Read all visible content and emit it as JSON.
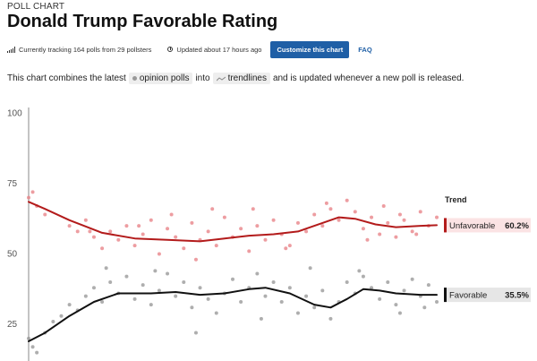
{
  "header": {
    "eyebrow": "POLL CHART",
    "title": "Donald Trump Favorable Rating"
  },
  "meta": {
    "tracking": "Currently tracking 164 polls from 29 pollsters",
    "updated": "Updated about 17 hours ago",
    "customize_label": "Customize this chart",
    "faq_label": "FAQ"
  },
  "description": {
    "before": "This chart combines the latest",
    "chip1": "opinion polls",
    "middle": "into",
    "chip2": "trendlines",
    "after": "and is updated whenever a new poll is released."
  },
  "colors": {
    "unfavorable": "#b31b1b",
    "unfavorable_dots": "#e8848a",
    "favorable": "#111111",
    "favorable_dots": "#9a9a9a",
    "button": "#1f5fa6"
  },
  "chart_data": {
    "type": "line",
    "ylim": [
      12,
      102
    ],
    "xlim": [
      0,
      100
    ],
    "yticks": [
      100,
      75,
      50,
      25
    ],
    "legend_title": "Trend",
    "grid": false,
    "series": [
      {
        "name": "Unfavorable",
        "end_value": "60.2%",
        "trend": [
          [
            0,
            68.5
          ],
          [
            4,
            66
          ],
          [
            10,
            62
          ],
          [
            18,
            57.5
          ],
          [
            26,
            55.5
          ],
          [
            34,
            55
          ],
          [
            42,
            54.5
          ],
          [
            48,
            55.5
          ],
          [
            54,
            56.5
          ],
          [
            60,
            57
          ],
          [
            66,
            58
          ],
          [
            72,
            61
          ],
          [
            76,
            63
          ],
          [
            80,
            62.5
          ],
          [
            85,
            60.5
          ],
          [
            90,
            59.5
          ],
          [
            96,
            60
          ],
          [
            100,
            60.2
          ]
        ],
        "points": [
          [
            0,
            70
          ],
          [
            1,
            72
          ],
          [
            2,
            67
          ],
          [
            4,
            64
          ],
          [
            10,
            60
          ],
          [
            12,
            58
          ],
          [
            14,
            62
          ],
          [
            16,
            56
          ],
          [
            18,
            52
          ],
          [
            20,
            58
          ],
          [
            22,
            55
          ],
          [
            24,
            60
          ],
          [
            26,
            53
          ],
          [
            28,
            57
          ],
          [
            30,
            62
          ],
          [
            32,
            50
          ],
          [
            34,
            59
          ],
          [
            36,
            56
          ],
          [
            38,
            52
          ],
          [
            40,
            61
          ],
          [
            42,
            55
          ],
          [
            44,
            58
          ],
          [
            46,
            53
          ],
          [
            48,
            63
          ],
          [
            50,
            56
          ],
          [
            52,
            59
          ],
          [
            54,
            51
          ],
          [
            56,
            60
          ],
          [
            58,
            55
          ],
          [
            60,
            62
          ],
          [
            62,
            57
          ],
          [
            64,
            53
          ],
          [
            66,
            61
          ],
          [
            68,
            58
          ],
          [
            70,
            64
          ],
          [
            72,
            60
          ],
          [
            74,
            66
          ],
          [
            76,
            62
          ],
          [
            78,
            69
          ],
          [
            80,
            65
          ],
          [
            82,
            59
          ],
          [
            84,
            63
          ],
          [
            86,
            57
          ],
          [
            88,
            61
          ],
          [
            90,
            56
          ],
          [
            92,
            62
          ],
          [
            94,
            58
          ],
          [
            96,
            65
          ],
          [
            98,
            60
          ],
          [
            100,
            63
          ],
          [
            35,
            64
          ],
          [
            45,
            66
          ],
          [
            55,
            66
          ],
          [
            73,
            68
          ],
          [
            87,
            67
          ],
          [
            91,
            64
          ],
          [
            15,
            58
          ],
          [
            27,
            60
          ],
          [
            41,
            48
          ],
          [
            63,
            52
          ],
          [
            83,
            55
          ],
          [
            95,
            57
          ]
        ]
      },
      {
        "name": "Favorable",
        "end_value": "35.5%",
        "trend": [
          [
            0,
            19
          ],
          [
            4,
            22
          ],
          [
            10,
            28
          ],
          [
            16,
            33
          ],
          [
            22,
            36
          ],
          [
            30,
            36
          ],
          [
            36,
            36.5
          ],
          [
            42,
            35.5
          ],
          [
            48,
            36
          ],
          [
            54,
            37.5
          ],
          [
            58,
            38
          ],
          [
            64,
            36
          ],
          [
            70,
            32
          ],
          [
            74,
            31
          ],
          [
            78,
            34
          ],
          [
            82,
            37.5
          ],
          [
            86,
            37
          ],
          [
            90,
            36
          ],
          [
            96,
            35.5
          ],
          [
            100,
            35.5
          ]
        ],
        "points": [
          [
            0,
            20
          ],
          [
            1,
            17
          ],
          [
            2,
            15
          ],
          [
            4,
            22
          ],
          [
            8,
            28
          ],
          [
            10,
            32
          ],
          [
            12,
            30
          ],
          [
            14,
            35
          ],
          [
            16,
            38
          ],
          [
            18,
            33
          ],
          [
            20,
            40
          ],
          [
            22,
            36
          ],
          [
            24,
            42
          ],
          [
            26,
            34
          ],
          [
            28,
            39
          ],
          [
            30,
            32
          ],
          [
            32,
            37
          ],
          [
            34,
            43
          ],
          [
            36,
            35
          ],
          [
            38,
            40
          ],
          [
            40,
            31
          ],
          [
            42,
            38
          ],
          [
            44,
            34
          ],
          [
            46,
            29
          ],
          [
            48,
            36
          ],
          [
            50,
            41
          ],
          [
            52,
            33
          ],
          [
            54,
            38
          ],
          [
            56,
            43
          ],
          [
            58,
            35
          ],
          [
            60,
            40
          ],
          [
            62,
            33
          ],
          [
            64,
            38
          ],
          [
            66,
            29
          ],
          [
            68,
            35
          ],
          [
            70,
            31
          ],
          [
            72,
            37
          ],
          [
            74,
            27
          ],
          [
            76,
            33
          ],
          [
            78,
            40
          ],
          [
            80,
            36
          ],
          [
            82,
            42
          ],
          [
            84,
            38
          ],
          [
            86,
            34
          ],
          [
            88,
            40
          ],
          [
            90,
            32
          ],
          [
            92,
            37
          ],
          [
            94,
            41
          ],
          [
            96,
            35
          ],
          [
            98,
            39
          ],
          [
            100,
            33
          ],
          [
            6,
            26
          ],
          [
            19,
            45
          ],
          [
            31,
            44
          ],
          [
            41,
            22
          ],
          [
            57,
            27
          ],
          [
            69,
            45
          ],
          [
            81,
            44
          ],
          [
            91,
            29
          ],
          [
            97,
            31
          ]
        ]
      }
    ]
  }
}
